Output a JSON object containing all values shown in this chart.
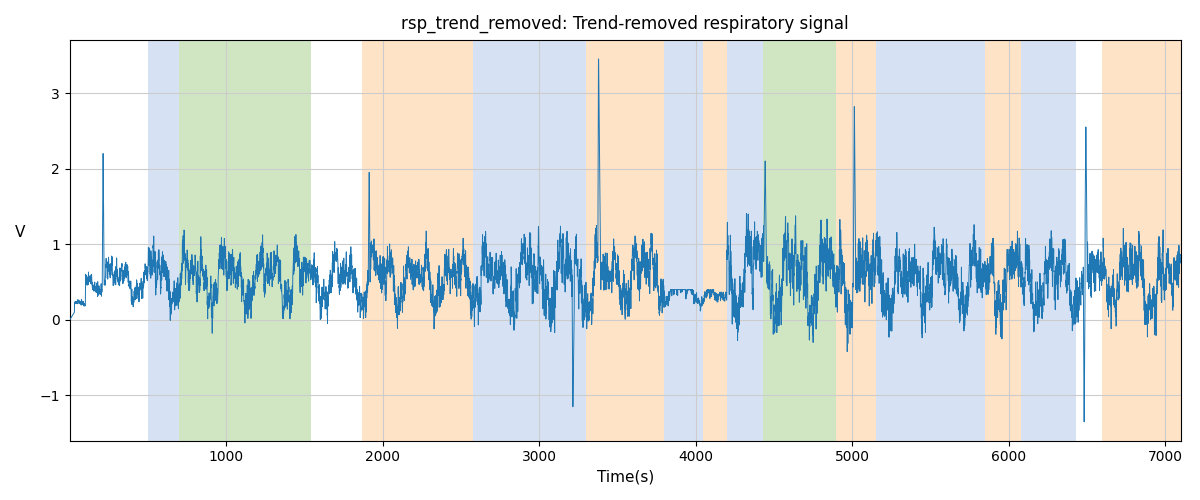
{
  "title": "rsp_trend_removed: Trend-removed respiratory signal",
  "xlabel": "Time(s)",
  "ylabel": "V",
  "xlim": [
    0,
    7100
  ],
  "ylim": [
    -1.6,
    3.7
  ],
  "yticks": [
    -1,
    0,
    1,
    2,
    3
  ],
  "xticks": [
    1000,
    2000,
    3000,
    4000,
    5000,
    6000,
    7000
  ],
  "signal_color": "#1f77b4",
  "signal_lw": 0.7,
  "grid_color": "#cccccc",
  "background": "#ffffff",
  "colored_regions": [
    {
      "start": 500,
      "end": 700,
      "color": "#aec6e8",
      "alpha": 0.5
    },
    {
      "start": 700,
      "end": 1540,
      "color": "#98c97a",
      "alpha": 0.45
    },
    {
      "start": 1870,
      "end": 2580,
      "color": "#ffcc99",
      "alpha": 0.55
    },
    {
      "start": 2580,
      "end": 3300,
      "color": "#aec6e8",
      "alpha": 0.5
    },
    {
      "start": 3300,
      "end": 3800,
      "color": "#ffcc99",
      "alpha": 0.55
    },
    {
      "start": 3800,
      "end": 4050,
      "color": "#aec6e8",
      "alpha": 0.5
    },
    {
      "start": 4050,
      "end": 4200,
      "color": "#ffcc99",
      "alpha": 0.55
    },
    {
      "start": 4200,
      "end": 4430,
      "color": "#aec6e8",
      "alpha": 0.5
    },
    {
      "start": 4430,
      "end": 4900,
      "color": "#98c97a",
      "alpha": 0.45
    },
    {
      "start": 4900,
      "end": 5150,
      "color": "#ffcc99",
      "alpha": 0.55
    },
    {
      "start": 5150,
      "end": 5850,
      "color": "#aec6e8",
      "alpha": 0.5
    },
    {
      "start": 5850,
      "end": 6080,
      "color": "#ffcc99",
      "alpha": 0.55
    },
    {
      "start": 6080,
      "end": 6430,
      "color": "#aec6e8",
      "alpha": 0.5
    },
    {
      "start": 6600,
      "end": 7100,
      "color": "#ffcc99",
      "alpha": 0.55
    }
  ],
  "seed": 42,
  "n_samples": 7100
}
